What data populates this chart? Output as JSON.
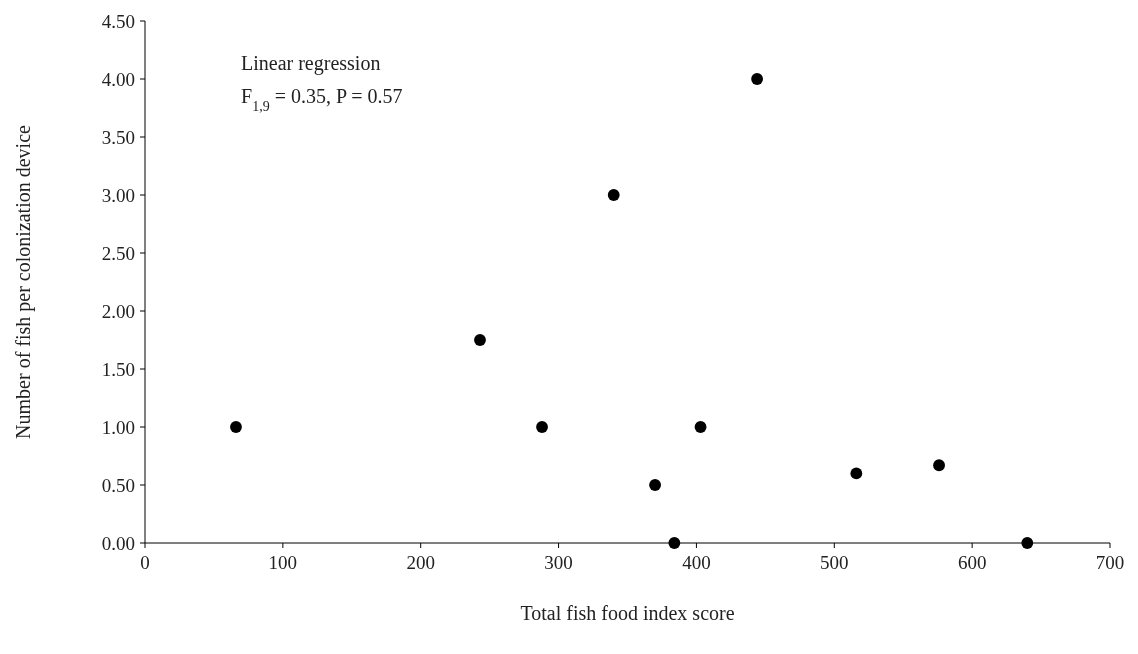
{
  "chart_data": {
    "type": "scatter",
    "xlabel": "Total fish food index score",
    "ylabel": "Number of fish per colonization device",
    "annotations": [
      "Linear regression",
      "F$_{1,9}$ = 0.35, P = 0.57"
    ],
    "series": [
      {
        "color": "#000000",
        "x": [
          66,
          243,
          288,
          340,
          370,
          384,
          403,
          444,
          516,
          576,
          640
        ],
        "values": [
          1.0,
          1.75,
          1.0,
          3.0,
          0.5,
          0.0,
          1.0,
          4.0,
          0.6,
          0.67,
          0.0
        ]
      }
    ],
    "xlim": [
      0,
      700
    ],
    "xticks": [
      0,
      100,
      200,
      300,
      400,
      500,
      600,
      700
    ],
    "ylim": [
      0,
      4.5
    ],
    "yticks": [
      {
        "value": 0,
        "label": "0.00"
      },
      {
        "value": 0.5,
        "label": "0.50"
      },
      {
        "value": 1,
        "label": "1.00"
      },
      {
        "value": 1.5,
        "label": "1.50"
      },
      {
        "value": 2,
        "label": "2.00"
      },
      {
        "value": 2.5,
        "label": "2.50"
      },
      {
        "value": 3,
        "label": "3.00"
      },
      {
        "value": 3.5,
        "label": "3.50"
      },
      {
        "value": 4,
        "label": "4.00"
      },
      {
        "value": 4.5,
        "label": "4.50"
      }
    ],
    "marker": "circle",
    "grid": false
  }
}
